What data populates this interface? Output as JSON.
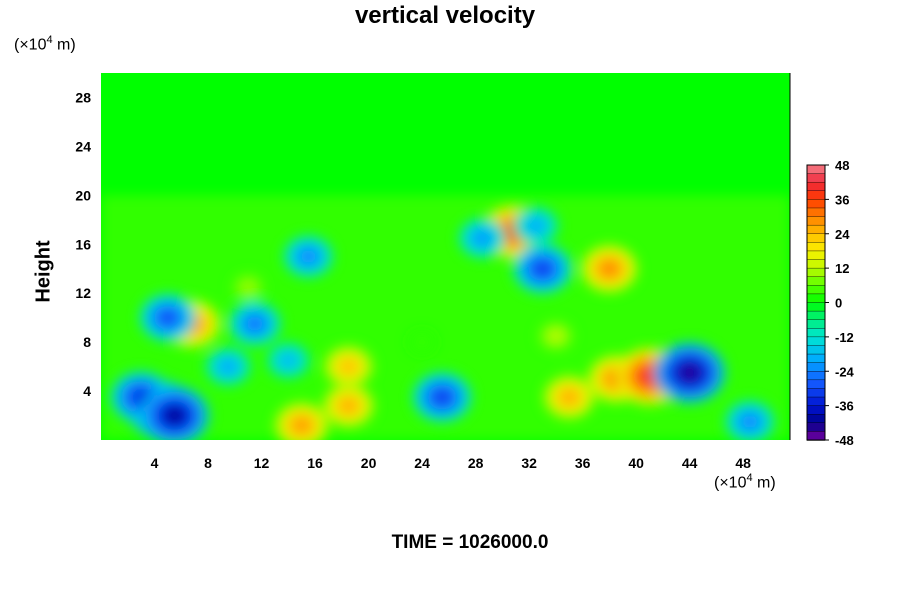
{
  "chart_data": {
    "type": "heatmap",
    "title": "vertical velocity",
    "ylabel": "Height",
    "y_unit": {
      "base": "(×10",
      "exp": "4",
      "tail": " m)"
    },
    "x_unit": {
      "base": "(×10",
      "exp": "4",
      "tail": " m)"
    },
    "xlim": [
      0,
      51.5
    ],
    "ylim": [
      0,
      30
    ],
    "x_ticks": [
      4,
      8,
      12,
      16,
      20,
      24,
      28,
      32,
      36,
      40,
      44,
      48
    ],
    "y_ticks": [
      4,
      8,
      12,
      16,
      20,
      24,
      28
    ],
    "colorbar": {
      "min": -48,
      "max": 48,
      "ticks": [
        48,
        36,
        24,
        12,
        0,
        -12,
        -24,
        -36,
        -48
      ]
    },
    "features": [
      {
        "x": 4.5,
        "y": 2.5,
        "value": -40
      },
      {
        "x": 3.0,
        "y": 3.5,
        "value": -34
      },
      {
        "x": 5.5,
        "y": 2.0,
        "value": -42
      },
      {
        "x": 18.5,
        "y": 2.8,
        "value": 26
      },
      {
        "x": 18.5,
        "y": 6.0,
        "value": 24
      },
      {
        "x": 15.0,
        "y": 1.2,
        "value": 28
      },
      {
        "x": 25.5,
        "y": 3.5,
        "value": -32
      },
      {
        "x": 35.0,
        "y": 3.5,
        "value": 26
      },
      {
        "x": 38.5,
        "y": 5.0,
        "value": 30
      },
      {
        "x": 41.0,
        "y": 5.2,
        "value": 40
      },
      {
        "x": 44.0,
        "y": 5.5,
        "value": -44
      },
      {
        "x": 30.8,
        "y": 17.0,
        "value": 36
      },
      {
        "x": 6.8,
        "y": 9.5,
        "value": 30
      },
      {
        "x": 5.0,
        "y": 10.0,
        "value": -30
      },
      {
        "x": 11.5,
        "y": 9.5,
        "value": -26
      },
      {
        "x": 33.0,
        "y": 14.0,
        "value": -32
      },
      {
        "x": 15.5,
        "y": 15.0,
        "value": -24
      },
      {
        "x": 38.0,
        "y": 14.0,
        "value": 30
      },
      {
        "x": 9.5,
        "y": 6.0,
        "value": -20
      },
      {
        "x": 14.0,
        "y": 6.5,
        "value": -18
      },
      {
        "x": 28.5,
        "y": 16.5,
        "value": -22
      },
      {
        "x": 32.5,
        "y": 17.5,
        "value": -20
      },
      {
        "x": 11.0,
        "y": 12.5,
        "value": 10
      },
      {
        "x": 48.5,
        "y": 1.5,
        "value": -24
      },
      {
        "x": 34.0,
        "y": 8.5,
        "value": 12
      },
      {
        "x": 24.0,
        "y": 8.0,
        "value": 4
      }
    ]
  },
  "time_label": "TIME = 1026000.0"
}
